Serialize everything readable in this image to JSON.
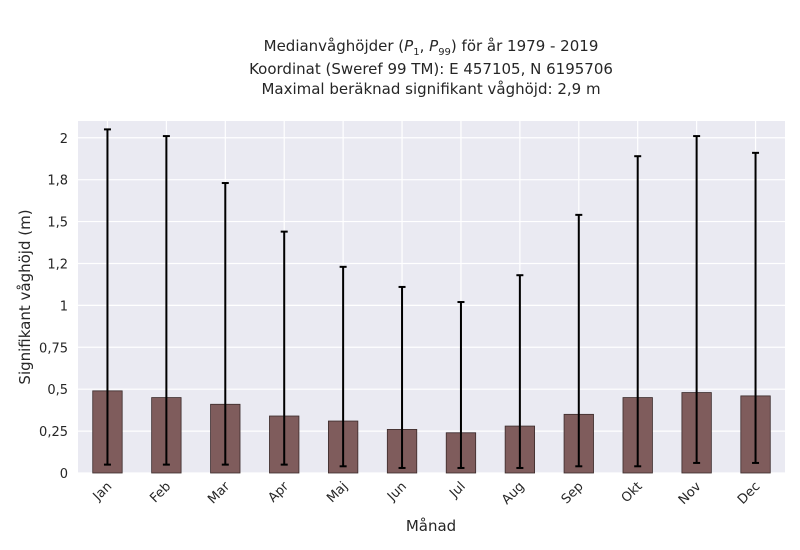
{
  "chart_data": {
    "type": "bar",
    "title_lines": [
      "Medianvåghöjder (P1, P99) för år 1979 - 2019",
      "Koordinat (Sweref 99 TM): E 457105, N 6195706",
      "Maximal beräknad signifikant våghöjd: 2,9 m"
    ],
    "title_math": {
      "prefix": "Medianvåghöjder (",
      "p_low": "1",
      "p_high": "99",
      "suffix": ") för år 1979 - 2019"
    },
    "xlabel": "Månad",
    "ylabel": "Signifikant våghöjd (m)",
    "categories": [
      "Jan",
      "Feb",
      "Mar",
      "Apr",
      "Maj",
      "Jun",
      "Jul",
      "Aug",
      "Sep",
      "Okt",
      "Nov",
      "Dec"
    ],
    "series": [
      {
        "values": [
          0.49,
          0.45,
          0.41,
          0.34,
          0.31,
          0.26,
          0.24,
          0.28,
          0.35,
          0.45,
          0.48,
          0.46
        ],
        "p1": [
          0.05,
          0.05,
          0.05,
          0.05,
          0.04,
          0.03,
          0.03,
          0.03,
          0.04,
          0.04,
          0.06,
          0.06
        ],
        "p99": [
          2.05,
          2.01,
          1.73,
          1.44,
          1.23,
          1.11,
          1.02,
          1.18,
          1.54,
          1.89,
          2.01,
          1.91
        ]
      }
    ],
    "ylim": [
      0,
      2.1
    ],
    "yticks": [
      0,
      0.25,
      0.5,
      0.75,
      1.0,
      1.25,
      1.5,
      1.75,
      2.0
    ],
    "ytick_labels": [
      "0",
      "0,25",
      "0,5",
      "0,75",
      "1",
      "1,2",
      "1,5",
      "1,8",
      "2"
    ],
    "grid": true,
    "colors": {
      "bar": "#7f5c5c",
      "bar_edge": "#3a2a2a",
      "errorbar": "#000000",
      "plot_bg": "#eaeaf2",
      "grid": "#ffffff"
    }
  }
}
